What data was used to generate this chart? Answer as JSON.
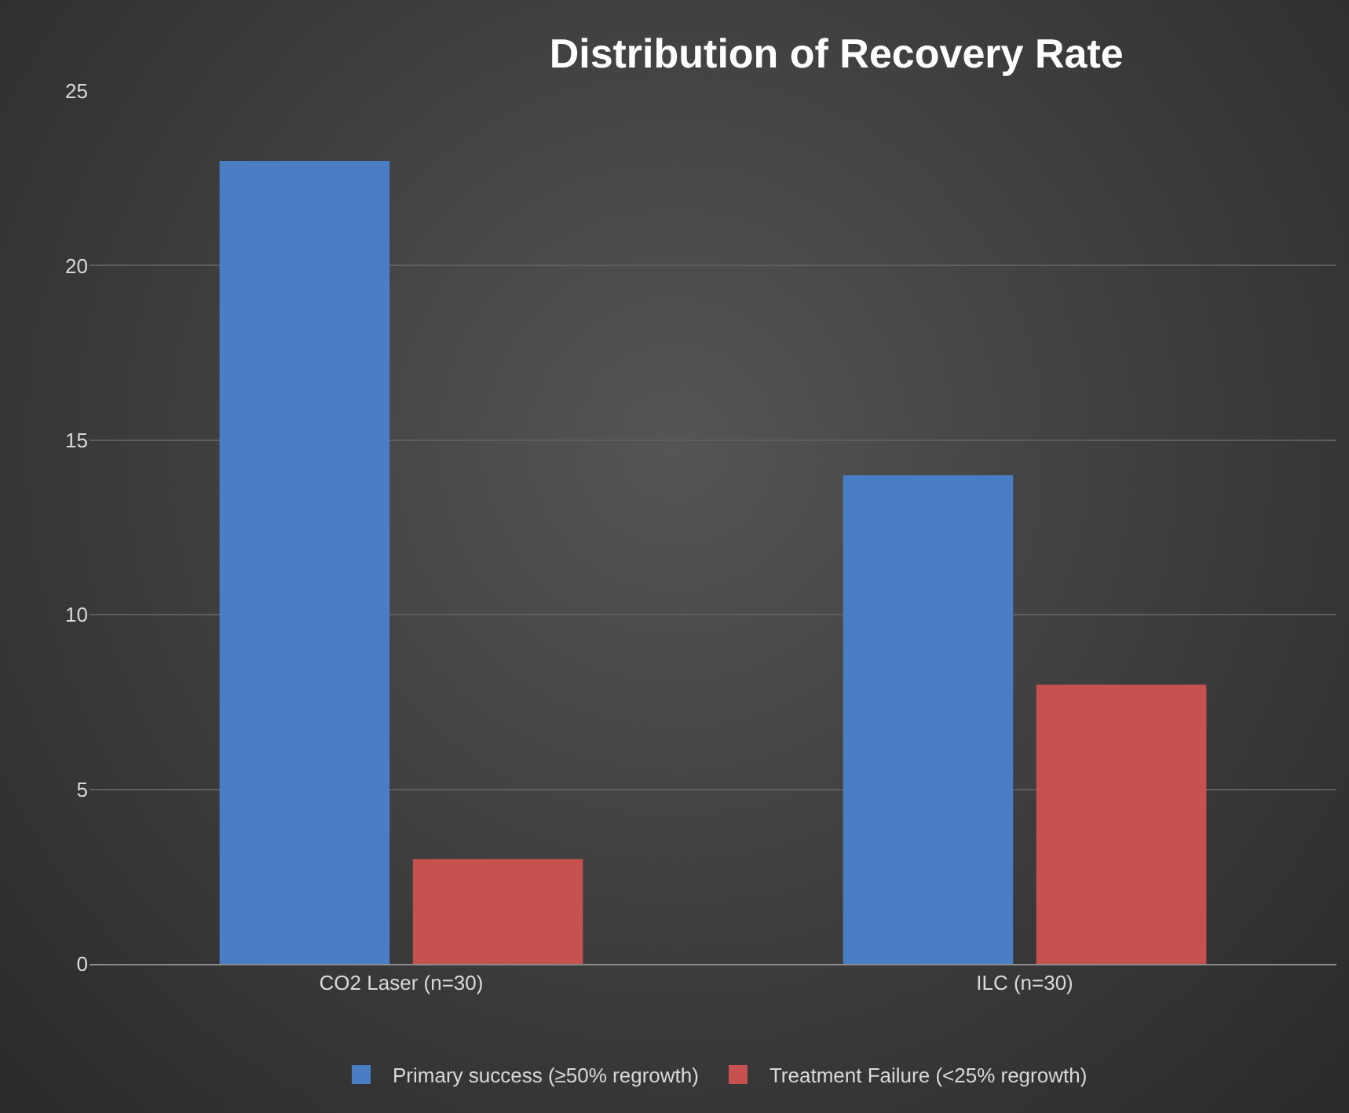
{
  "chart_data": {
    "type": "bar",
    "title": "Distribution of Recovery Rate",
    "categories": [
      "CO2 Laser (n=30)",
      "ILC (n=30)"
    ],
    "series": [
      {
        "name": "Primary success (≥50% regrowth)",
        "color": "#4a7ec4",
        "values": [
          23,
          14
        ]
      },
      {
        "name": "Treatment Failure (<25% regrowth)",
        "color": "#c65250",
        "values": [
          3,
          8
        ]
      }
    ],
    "ylim": [
      0,
      25
    ],
    "yticks": [
      0,
      5,
      10,
      15,
      20,
      25
    ],
    "grid": "y",
    "legend": "bottom"
  }
}
